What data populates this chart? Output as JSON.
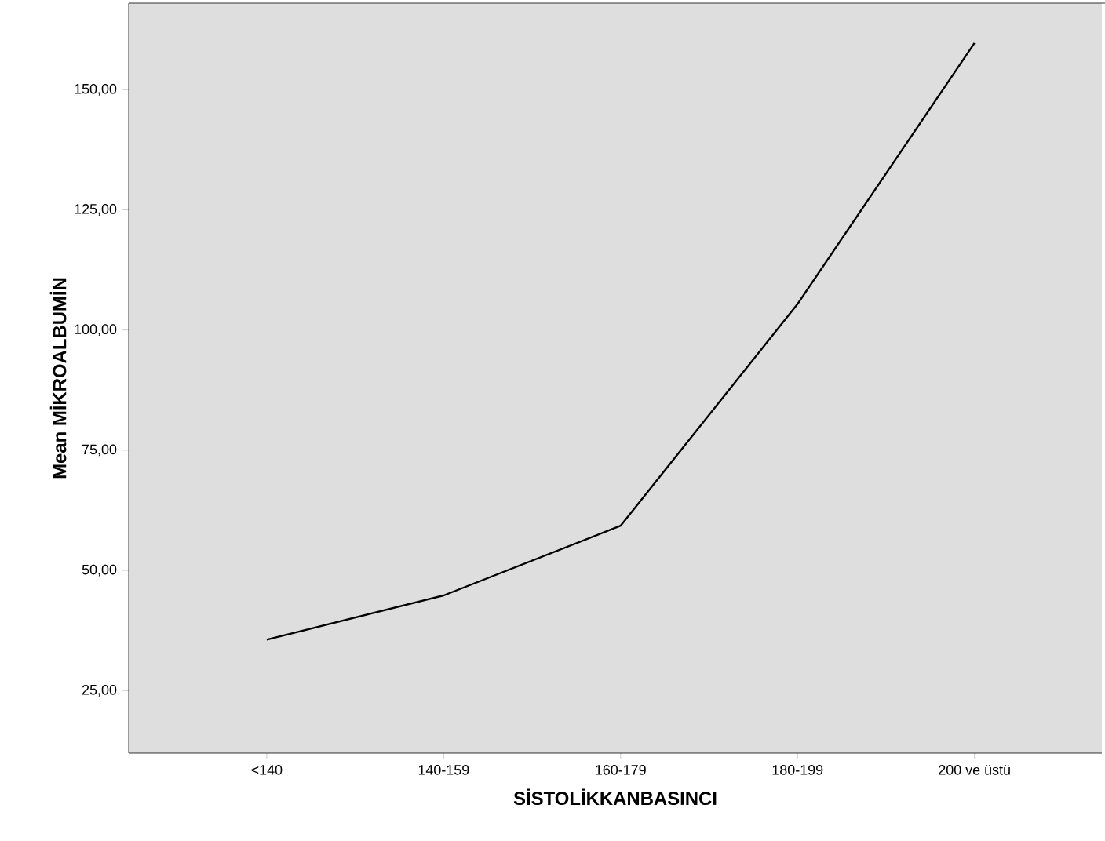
{
  "chart_data": {
    "type": "line",
    "xlabel": "SİSTOLİKKANBASINCI",
    "ylabel": "Mean MİKROALBUMİN",
    "categories": [
      "<140",
      "140-159",
      "160-179",
      "180-199",
      "200 ve üstü"
    ],
    "values": [
      35.6,
      44.8,
      59.3,
      105.4,
      159.7
    ],
    "color": "#000000",
    "ylim": [
      12,
      168
    ],
    "yticks": [
      {
        "value": 25,
        "label": "25,00"
      },
      {
        "value": 50,
        "label": "50,00"
      },
      {
        "value": 75,
        "label": "75,00"
      },
      {
        "value": 100,
        "label": "100,00"
      },
      {
        "value": 125,
        "label": "125,00"
      },
      {
        "value": 150,
        "label": "150,00"
      }
    ],
    "grid": false,
    "marker": "none",
    "line_style": "solid"
  }
}
